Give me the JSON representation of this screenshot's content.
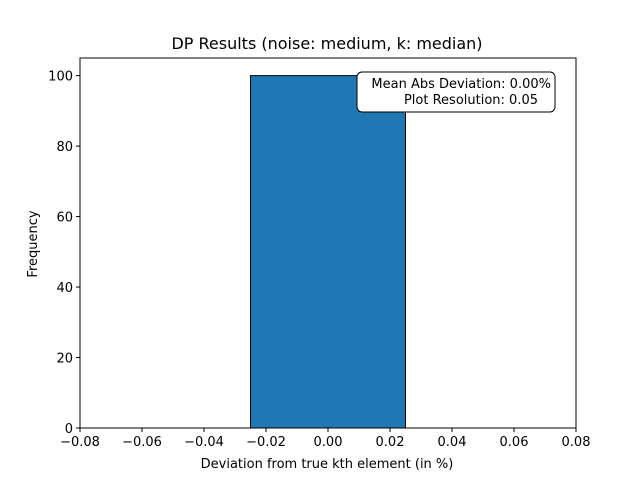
{
  "chart_data": {
    "type": "bar",
    "title": "DP Results (noise: medium, k: median)",
    "xlabel": "Deviation from true kth element (in %)",
    "ylabel": "Frequency",
    "xlim": [
      -0.08,
      0.08
    ],
    "ylim": [
      0,
      105
    ],
    "bins": [
      {
        "x0": -0.075,
        "x1": -0.025,
        "count": 0
      },
      {
        "x0": -0.025,
        "x1": 0.025,
        "count": 100
      },
      {
        "x0": 0.025,
        "x1": 0.075,
        "count": 0
      }
    ],
    "xticks": [
      -0.08,
      -0.06,
      -0.04,
      -0.02,
      0.0,
      0.02,
      0.04,
      0.06,
      0.08
    ],
    "xtick_labels": [
      "−0.08",
      "−0.06",
      "−0.04",
      "−0.02",
      "0.00",
      "0.02",
      "0.04",
      "0.06",
      "0.08"
    ],
    "yticks": [
      0,
      20,
      40,
      60,
      80,
      100
    ],
    "ytick_labels": [
      "0",
      "20",
      "40",
      "60",
      "80",
      "100"
    ],
    "bar_color": "#1f77b4",
    "edge_color": "#000000",
    "grid": false,
    "annotation": {
      "lines": [
        "Mean Abs Deviation: 0.00%",
        "Plot Resolution: 0.05"
      ],
      "placement": "top-right"
    }
  }
}
